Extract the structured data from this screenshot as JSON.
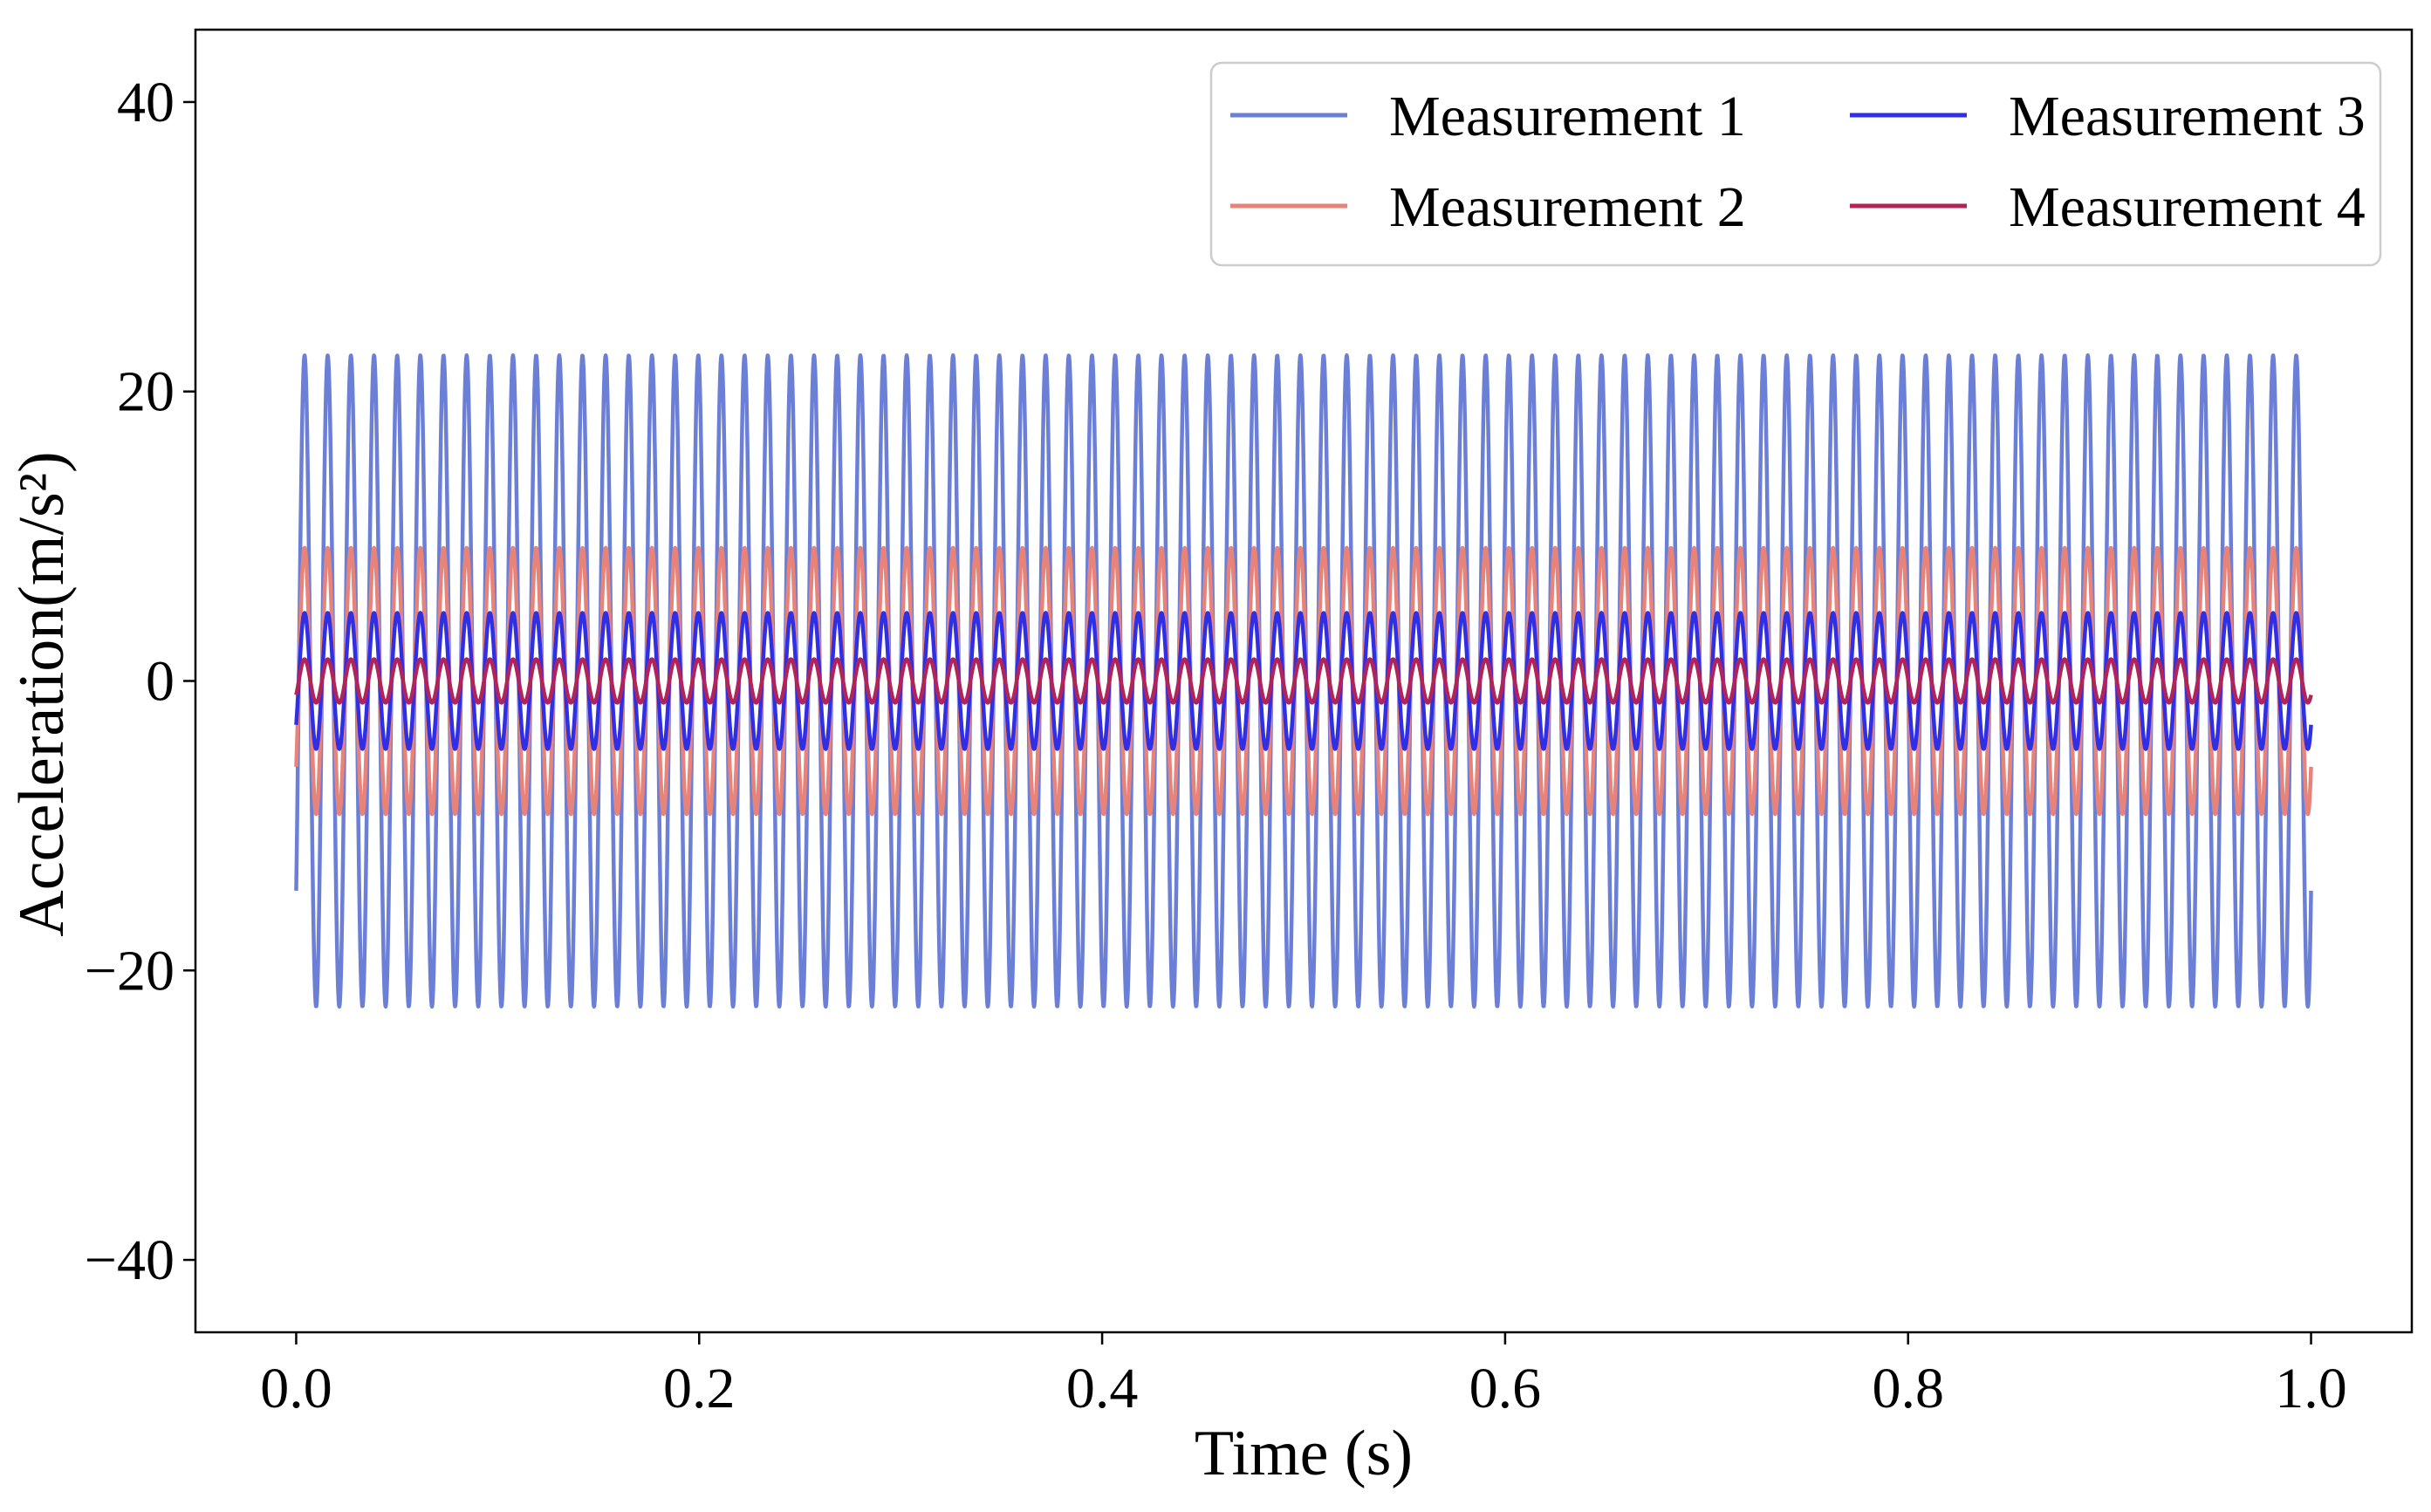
{
  "chart_data": {
    "type": "line",
    "title": "",
    "xlabel": "Time (s)",
    "ylabel": "Acceleration(m/s²)",
    "xlim": [
      -0.05,
      1.05
    ],
    "ylim": [
      -45,
      45
    ],
    "xticks": [
      0.0,
      0.2,
      0.4,
      0.6,
      0.8,
      1.0
    ],
    "xtick_labels": [
      "0.0",
      "0.2",
      "0.4",
      "0.6",
      "0.8",
      "1.0"
    ],
    "yticks": [
      -40,
      -20,
      0,
      20,
      40
    ],
    "ytick_labels": [
      "−40",
      "−20",
      "0",
      "20",
      "40"
    ],
    "grid": false,
    "legend_position": "top-right",
    "legend_columns": 2,
    "sampling": {
      "t_start": 0.0,
      "t_end": 1.0,
      "oscillation_frequency_hz": 87
    },
    "series": [
      {
        "name": "Measurement 1",
        "color": "#6b7fd7",
        "amplitude": 22.5,
        "offset": 0.0
      },
      {
        "name": "Measurement 2",
        "color": "#e8837a",
        "amplitude": 9.2,
        "offset": 0.0
      },
      {
        "name": "Measurement 3",
        "color": "#2f2fe6",
        "amplitude": 4.7,
        "offset": 0.0
      },
      {
        "name": "Measurement 4",
        "color": "#b0245a",
        "amplitude": 1.5,
        "offset": 0.0
      }
    ]
  }
}
